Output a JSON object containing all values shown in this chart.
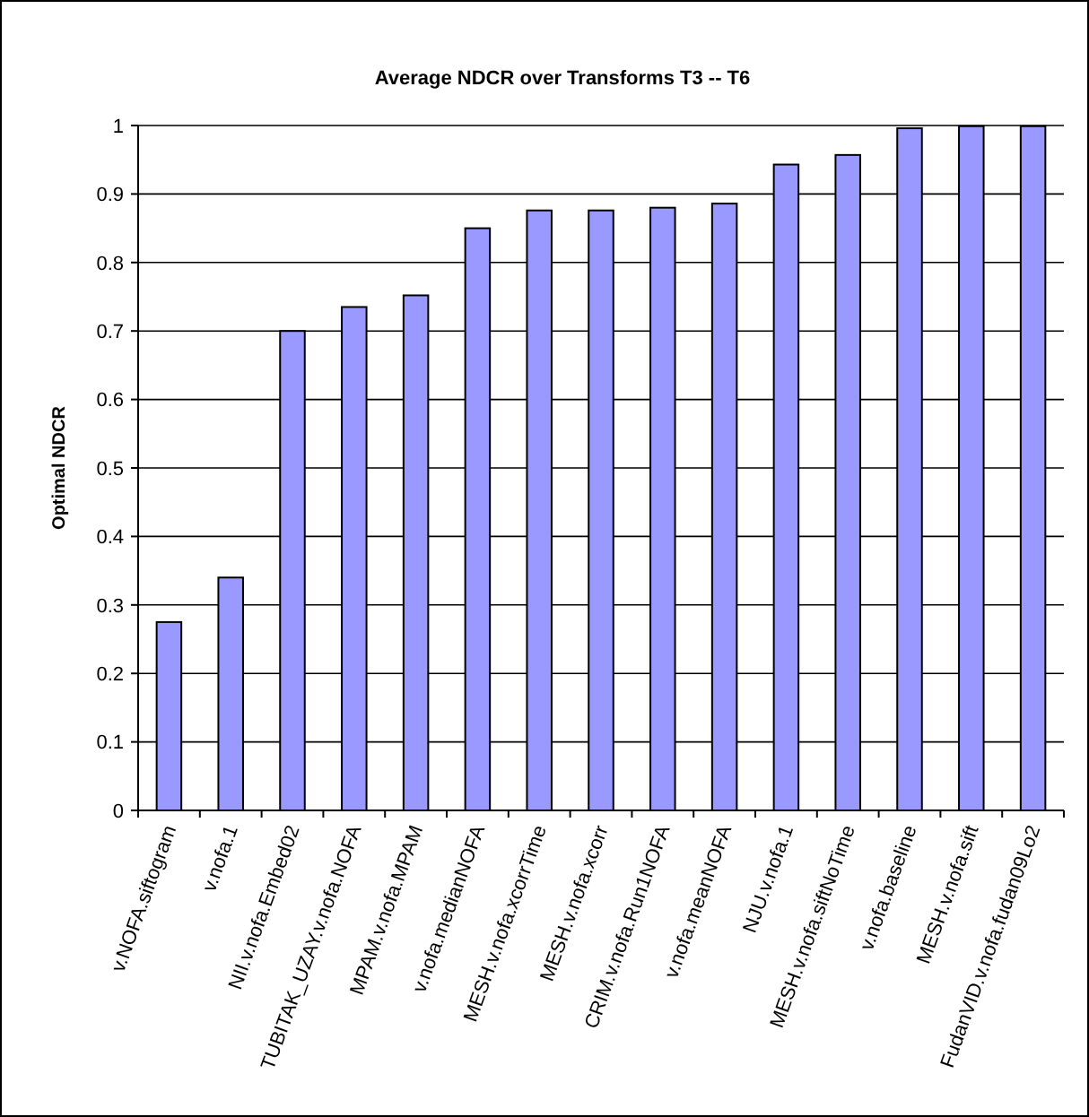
{
  "chart_data": {
    "type": "bar",
    "title": "Average NDCR over Transforms T3 -- T6",
    "ylabel": "Optimal NDCR",
    "categories": [
      "v.NOFA.siftogram",
      "v.nofa.1",
      "NII.v.nofa.Embed02",
      "TUBITAK_UZAY.v.nofa.NOFA",
      "MPAM.v.nofa.MPAM",
      "v.nofa.medianNOFA",
      "MESH.v.nofa.xcorrTime",
      "MESH.v.nofa.xcorr",
      "CRIM.v.nofa.Run1NOFA",
      "v.nofa.meanNOFA",
      "NJU.v.nofa.1",
      "MESH.v.nofa.siftNoTime",
      "v.nofa.baseline",
      "MESH.v.nofa.sift",
      "FudanVID.v.nofa.fudan09Lo2"
    ],
    "values": [
      0.275,
      0.34,
      0.7,
      0.735,
      0.752,
      0.85,
      0.876,
      0.876,
      0.88,
      0.886,
      0.943,
      0.957,
      0.996,
      0.999,
      0.999
    ],
    "color": "#9999ff",
    "ylim": [
      0,
      1
    ],
    "yticks": [
      0,
      0.1,
      0.2,
      0.3,
      0.4,
      0.5,
      0.6,
      0.7,
      0.8,
      0.9,
      1
    ],
    "grid": "y"
  }
}
